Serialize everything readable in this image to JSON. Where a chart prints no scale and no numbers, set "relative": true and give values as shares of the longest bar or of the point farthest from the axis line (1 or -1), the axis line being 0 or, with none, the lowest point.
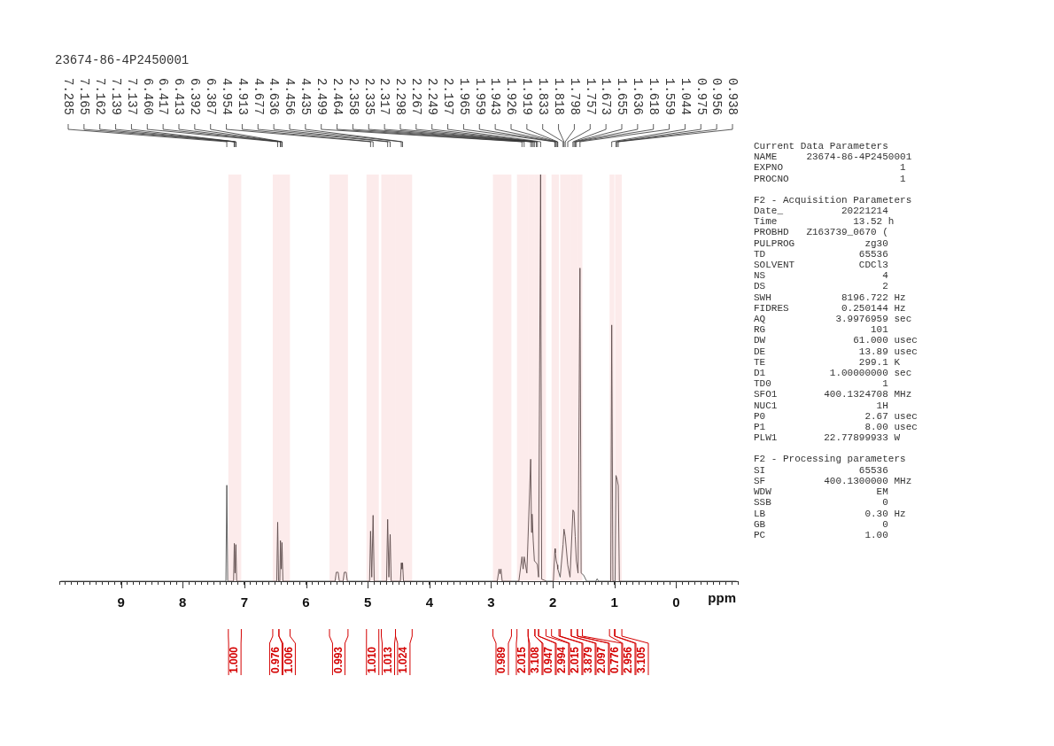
{
  "chart_data": {
    "type": "line",
    "title": "23674-86-4P2450001",
    "xlabel": "ppm",
    "relative": true,
    "xlim": [
      10,
      -1
    ],
    "xticks": [
      {
        "value": 10,
        "label": null
      },
      {
        "value": 9.9,
        "label": null
      },
      {
        "value": 9.8,
        "label": null
      },
      {
        "value": 9.7,
        "label": null
      },
      {
        "value": 9.6,
        "label": null
      },
      {
        "value": 9.5,
        "label": null
      },
      {
        "value": 9.4,
        "label": null
      },
      {
        "value": 9.3,
        "label": null
      },
      {
        "value": 9.2,
        "label": null
      },
      {
        "value": 9.1,
        "label": null
      },
      9,
      {
        "value": 8.9,
        "label": null
      },
      {
        "value": 8.8,
        "label": null
      },
      {
        "value": 8.7,
        "label": null
      },
      {
        "value": 8.6,
        "label": null
      },
      {
        "value": 8.5,
        "label": null
      },
      {
        "value": 8.4,
        "label": null
      },
      {
        "value": 8.3,
        "label": null
      },
      {
        "value": 8.2,
        "label": null
      },
      {
        "value": 8.1,
        "label": null
      },
      8,
      {
        "value": 7.9,
        "label": null
      },
      {
        "value": 7.8,
        "label": null
      },
      {
        "value": 7.7,
        "label": null
      },
      {
        "value": 7.6,
        "label": null
      },
      {
        "value": 7.5,
        "label": null
      },
      {
        "value": 7.4,
        "label": null
      },
      {
        "value": 7.3,
        "label": null
      },
      {
        "value": 7.2,
        "label": null
      },
      {
        "value": 7.1,
        "label": null
      },
      7,
      {
        "value": 6.9,
        "label": null
      },
      {
        "value": 6.8,
        "label": null
      },
      {
        "value": 6.7,
        "label": null
      },
      {
        "value": 6.6,
        "label": null
      },
      {
        "value": 6.5,
        "label": null
      },
      {
        "value": 6.4,
        "label": null
      },
      {
        "value": 6.3,
        "label": null
      },
      {
        "value": 6.2,
        "label": null
      },
      {
        "value": 6.1,
        "label": null
      },
      6,
      {
        "value": 5.9,
        "label": null
      },
      {
        "value": 5.8,
        "label": null
      },
      {
        "value": 5.7,
        "label": null
      },
      {
        "value": 5.6,
        "label": null
      },
      {
        "value": 5.5,
        "label": null
      },
      {
        "value": 5.4,
        "label": null
      },
      {
        "value": 5.3,
        "label": null
      },
      {
        "value": 5.2,
        "label": null
      },
      {
        "value": 5.1,
        "label": null
      },
      5,
      {
        "value": 4.9,
        "label": null
      },
      {
        "value": 4.8,
        "label": null
      },
      {
        "value": 4.7,
        "label": null
      },
      {
        "value": 4.6,
        "label": null
      },
      {
        "value": 4.5,
        "label": null
      },
      {
        "value": 4.4,
        "label": null
      },
      {
        "value": 4.3,
        "label": null
      },
      {
        "value": 4.2,
        "label": null
      },
      {
        "value": 4.1,
        "label": null
      },
      4,
      {
        "value": 3.9,
        "label": null
      },
      {
        "value": 3.8,
        "label": null
      },
      {
        "value": 3.7,
        "label": null
      },
      {
        "value": 3.6,
        "label": null
      },
      {
        "value": 3.5,
        "label": null
      },
      {
        "value": 3.4,
        "label": null
      },
      {
        "value": 3.3,
        "label": null
      },
      {
        "value": 3.2,
        "label": null
      },
      {
        "value": 3.1,
        "label": null
      },
      3,
      {
        "value": 2.9,
        "label": null
      },
      {
        "value": 2.8,
        "label": null
      },
      {
        "value": 2.7,
        "label": null
      },
      {
        "value": 2.6,
        "label": null
      },
      {
        "value": 2.5,
        "label": null
      },
      {
        "value": 2.4,
        "label": null
      },
      {
        "value": 2.3,
        "label": null
      },
      {
        "value": 2.2,
        "label": null
      },
      {
        "value": 2.1,
        "label": null
      },
      2,
      {
        "value": 1.9,
        "label": null
      },
      {
        "value": 1.8,
        "label": null
      },
      {
        "value": 1.7,
        "label": null
      },
      {
        "value": 1.6,
        "label": null
      },
      {
        "value": 1.5,
        "label": null
      },
      {
        "value": 1.4,
        "label": null
      },
      {
        "value": 1.3,
        "label": null
      },
      {
        "value": 1.2,
        "label": null
      },
      {
        "value": 1.1,
        "label": null
      },
      1,
      {
        "value": 0.9,
        "label": null
      },
      {
        "value": 0.8,
        "label": null
      },
      {
        "value": 0.7,
        "label": null
      },
      {
        "value": 0.6,
        "label": null
      },
      {
        "value": 0.5,
        "label": null
      },
      {
        "value": 0.4,
        "label": null
      },
      {
        "value": 0.3,
        "label": null
      },
      {
        "value": 0.2,
        "label": null
      },
      {
        "value": 0.1,
        "label": null
      },
      0,
      {
        "value": -0.1,
        "label": null
      },
      {
        "value": -0.2,
        "label": null
      },
      {
        "value": -0.3,
        "label": null
      },
      {
        "value": -0.4,
        "label": null
      },
      {
        "value": -0.5,
        "label": null
      },
      {
        "value": -0.6,
        "label": null
      },
      {
        "value": -0.7,
        "label": null
      },
      {
        "value": -0.8,
        "label": null
      },
      {
        "value": -0.9,
        "label": null
      },
      {
        "value": -1,
        "label": null
      }
    ],
    "series": [
      {
        "color": "#555555",
        "x": [
          9.98,
          7.3,
          7.285,
          7.27,
          7.175,
          7.163,
          7.152,
          7.138,
          7.125,
          6.475,
          6.46,
          6.445,
          6.425,
          6.415,
          6.403,
          6.39,
          6.375,
          5.53,
          5.51,
          5.48,
          5.46,
          5.4,
          5.38,
          5.35,
          5.33,
          4.97,
          4.954,
          4.935,
          4.913,
          4.895,
          4.695,
          4.677,
          4.657,
          4.636,
          4.62,
          4.47,
          4.456,
          4.445,
          4.435,
          4.42,
          2.9,
          2.87,
          2.855,
          2.84,
          2.82,
          2.55,
          2.499,
          2.48,
          2.464,
          2.42,
          2.358,
          2.345,
          2.335,
          2.317,
          2.298,
          2.267,
          2.249,
          2.23,
          2.197,
          2.18,
          2.1,
          1.99,
          1.965,
          1.959,
          1.943,
          1.926,
          1.919,
          1.88,
          1.833,
          1.818,
          1.798,
          1.757,
          1.72,
          1.673,
          1.655,
          1.636,
          1.618,
          1.59,
          1.559,
          1.54,
          1.5,
          1.45,
          1.3,
          1.28,
          1.26,
          1.06,
          1.044,
          1.025,
          0.99,
          0.975,
          0.956,
          0.938,
          0.92,
          -0.98
        ],
        "values": [
          0,
          0,
          0.236,
          0,
          0,
          0.093,
          0.02,
          0.09,
          0,
          0,
          0.145,
          0,
          0,
          0.1,
          0.03,
          0.095,
          0,
          0,
          0.022,
          0.022,
          0,
          0,
          0.022,
          0.022,
          0,
          0,
          0.123,
          0.01,
          0.162,
          0,
          0,
          0.152,
          0.01,
          0.115,
          0,
          0,
          0.045,
          0.03,
          0.045,
          0,
          0,
          0.03,
          0.018,
          0.03,
          0,
          0,
          0.06,
          0.03,
          0.06,
          0.02,
          0.3,
          0.12,
          0.165,
          0.1,
          0.05,
          0.045,
          0.04,
          0.01,
          1,
          0.005,
          0,
          0,
          0.08,
          0.07,
          0.05,
          0.04,
          0.03,
          0.01,
          0.09,
          0.128,
          0.11,
          0.04,
          0.01,
          0.175,
          0.17,
          0.11,
          0.05,
          0.02,
          0.77,
          0.02,
          0.015,
          0,
          0,
          0.006,
          0,
          0,
          0.63,
          0,
          0,
          0.26,
          0.25,
          0.235,
          0,
          0
        ]
      }
    ],
    "annotations": [
      {
        "text": "7.285",
        "x": 7.285
      },
      {
        "text": "7.165",
        "x": 7.165
      },
      {
        "text": "7.162",
        "x": 7.162
      },
      {
        "text": "7.139",
        "x": 7.139
      },
      {
        "text": "7.137",
        "x": 7.137
      },
      {
        "text": "6.460",
        "x": 6.46
      },
      {
        "text": "6.417",
        "x": 6.417
      },
      {
        "text": "6.413",
        "x": 6.413
      },
      {
        "text": "6.392",
        "x": 6.392
      },
      {
        "text": "6.387",
        "x": 6.387
      },
      {
        "text": "4.954",
        "x": 4.954
      },
      {
        "text": "4.913",
        "x": 4.913
      },
      {
        "text": "4.677",
        "x": 4.677
      },
      {
        "text": "4.636",
        "x": 4.636
      },
      {
        "text": "4.456",
        "x": 4.456
      },
      {
        "text": "4.435",
        "x": 4.435
      },
      {
        "text": "2.499",
        "x": 2.499
      },
      {
        "text": "2.464",
        "x": 2.464
      },
      {
        "text": "2.358",
        "x": 2.358
      },
      {
        "text": "2.335",
        "x": 2.335
      },
      {
        "text": "2.317",
        "x": 2.317
      },
      {
        "text": "2.298",
        "x": 2.298
      },
      {
        "text": "2.267",
        "x": 2.267
      },
      {
        "text": "2.249",
        "x": 2.249
      },
      {
        "text": "2.197",
        "x": 2.197
      },
      {
        "text": "1.965",
        "x": 1.965
      },
      {
        "text": "1.959",
        "x": 1.959
      },
      {
        "text": "1.943",
        "x": 1.943
      },
      {
        "text": "1.926",
        "x": 1.926
      },
      {
        "text": "1.919",
        "x": 1.919
      },
      {
        "text": "1.833",
        "x": 1.833
      },
      {
        "text": "1.818",
        "x": 1.818
      },
      {
        "text": "1.798",
        "x": 1.798
      },
      {
        "text": "1.757",
        "x": 1.757
      },
      {
        "text": "1.673",
        "x": 1.673
      },
      {
        "text": "1.655",
        "x": 1.655
      },
      {
        "text": "1.636",
        "x": 1.636
      },
      {
        "text": "1.618",
        "x": 1.618
      },
      {
        "text": "1.559",
        "x": 1.559
      },
      {
        "text": "1.044",
        "x": 1.044
      },
      {
        "text": "0.975",
        "x": 0.975
      },
      {
        "text": "0.956",
        "x": 0.956
      },
      {
        "text": "0.938",
        "x": 0.938
      },
      "Current Data Parameters\nNAME     23674-86-4P2450001\nEXPNO                    1\nPROCNO                   1",
      "F2 - Acquisition Parameters\nDate_          20221214\nTime             13.52 h\nPROBHD   Z163739_0670 (\nPULPROG            zg30\nTD                65536\nSOLVENT           CDCl3\nNS                    4\nDS                    2\nSWH            8196.722 Hz\nFIDRES         0.250144 Hz\nAQ            3.9976959 sec\nRG                  101\nDW               61.000 usec\nDE                13.89 usec\nTE                299.1 K\nD1           1.00000000 sec\nTD0                   1\nSFO1        400.1324708 MHz\nNUC1                 1H\nP0                 2.67 usec\nP1                 8.00 usec\nPLW1        22.77899933 W",
      "F2 - Processing parameters\nSI                65536\nSF          400.1300000 MHz\nWDW                  EM\nSSB                   0\nLB                 0.30 Hz\nGB                    0\nPC                 1.00"
    ],
    "bands": [
      {
        "axis": "x",
        "from": 7.26,
        "to": 7.05,
        "label": "1.000",
        "color": "#d40000"
      },
      {
        "axis": "x",
        "from": 6.54,
        "to": 6.44,
        "label": "0.976",
        "color": "#d40000"
      },
      {
        "axis": "x",
        "from": 6.44,
        "to": 6.26,
        "label": "1.006",
        "color": "#d40000"
      },
      {
        "axis": "x",
        "from": 5.62,
        "to": 5.32,
        "label": "0.993",
        "color": "#d40000"
      },
      {
        "axis": "x",
        "from": 5.02,
        "to": 4.82,
        "label": "1.010",
        "color": "#d40000"
      },
      {
        "axis": "x",
        "from": 4.78,
        "to": 4.55,
        "label": "1.013",
        "color": "#d40000"
      },
      {
        "axis": "x",
        "from": 4.55,
        "to": 4.28,
        "label": "1.024",
        "color": "#d40000"
      },
      {
        "axis": "x",
        "from": 2.97,
        "to": 2.67,
        "label": "0.989",
        "color": "#d40000"
      },
      {
        "axis": "x",
        "from": 2.58,
        "to": 2.4,
        "label": "2.015",
        "color": "#d40000"
      },
      {
        "axis": "x",
        "from": 2.4,
        "to": 2.29,
        "label": "3.108",
        "color": "#d40000"
      },
      {
        "axis": "x",
        "from": 2.29,
        "to": 2.23,
        "label": "0.947",
        "color": "#d40000"
      },
      {
        "axis": "x",
        "from": 2.23,
        "to": 2.11,
        "label": "2.994",
        "color": "#d40000"
      },
      {
        "axis": "x",
        "from": 2.02,
        "to": 1.9,
        "label": "2.015",
        "color": "#d40000"
      },
      {
        "axis": "x",
        "from": 1.88,
        "to": 1.7,
        "label": "3.879",
        "color": "#d40000"
      },
      {
        "axis": "x",
        "from": 1.7,
        "to": 1.6,
        "label": "2.097",
        "color": "#d40000"
      },
      {
        "axis": "x",
        "from": 1.6,
        "to": 1.52,
        "label": "0.776",
        "color": "#d40000"
      },
      {
        "axis": "x",
        "from": 1.08,
        "to": 1.0,
        "label": "2.956",
        "color": "#d40000"
      },
      {
        "axis": "x",
        "from": 0.99,
        "to": 0.88,
        "label": "3.105",
        "color": "#d40000"
      }
    ]
  }
}
